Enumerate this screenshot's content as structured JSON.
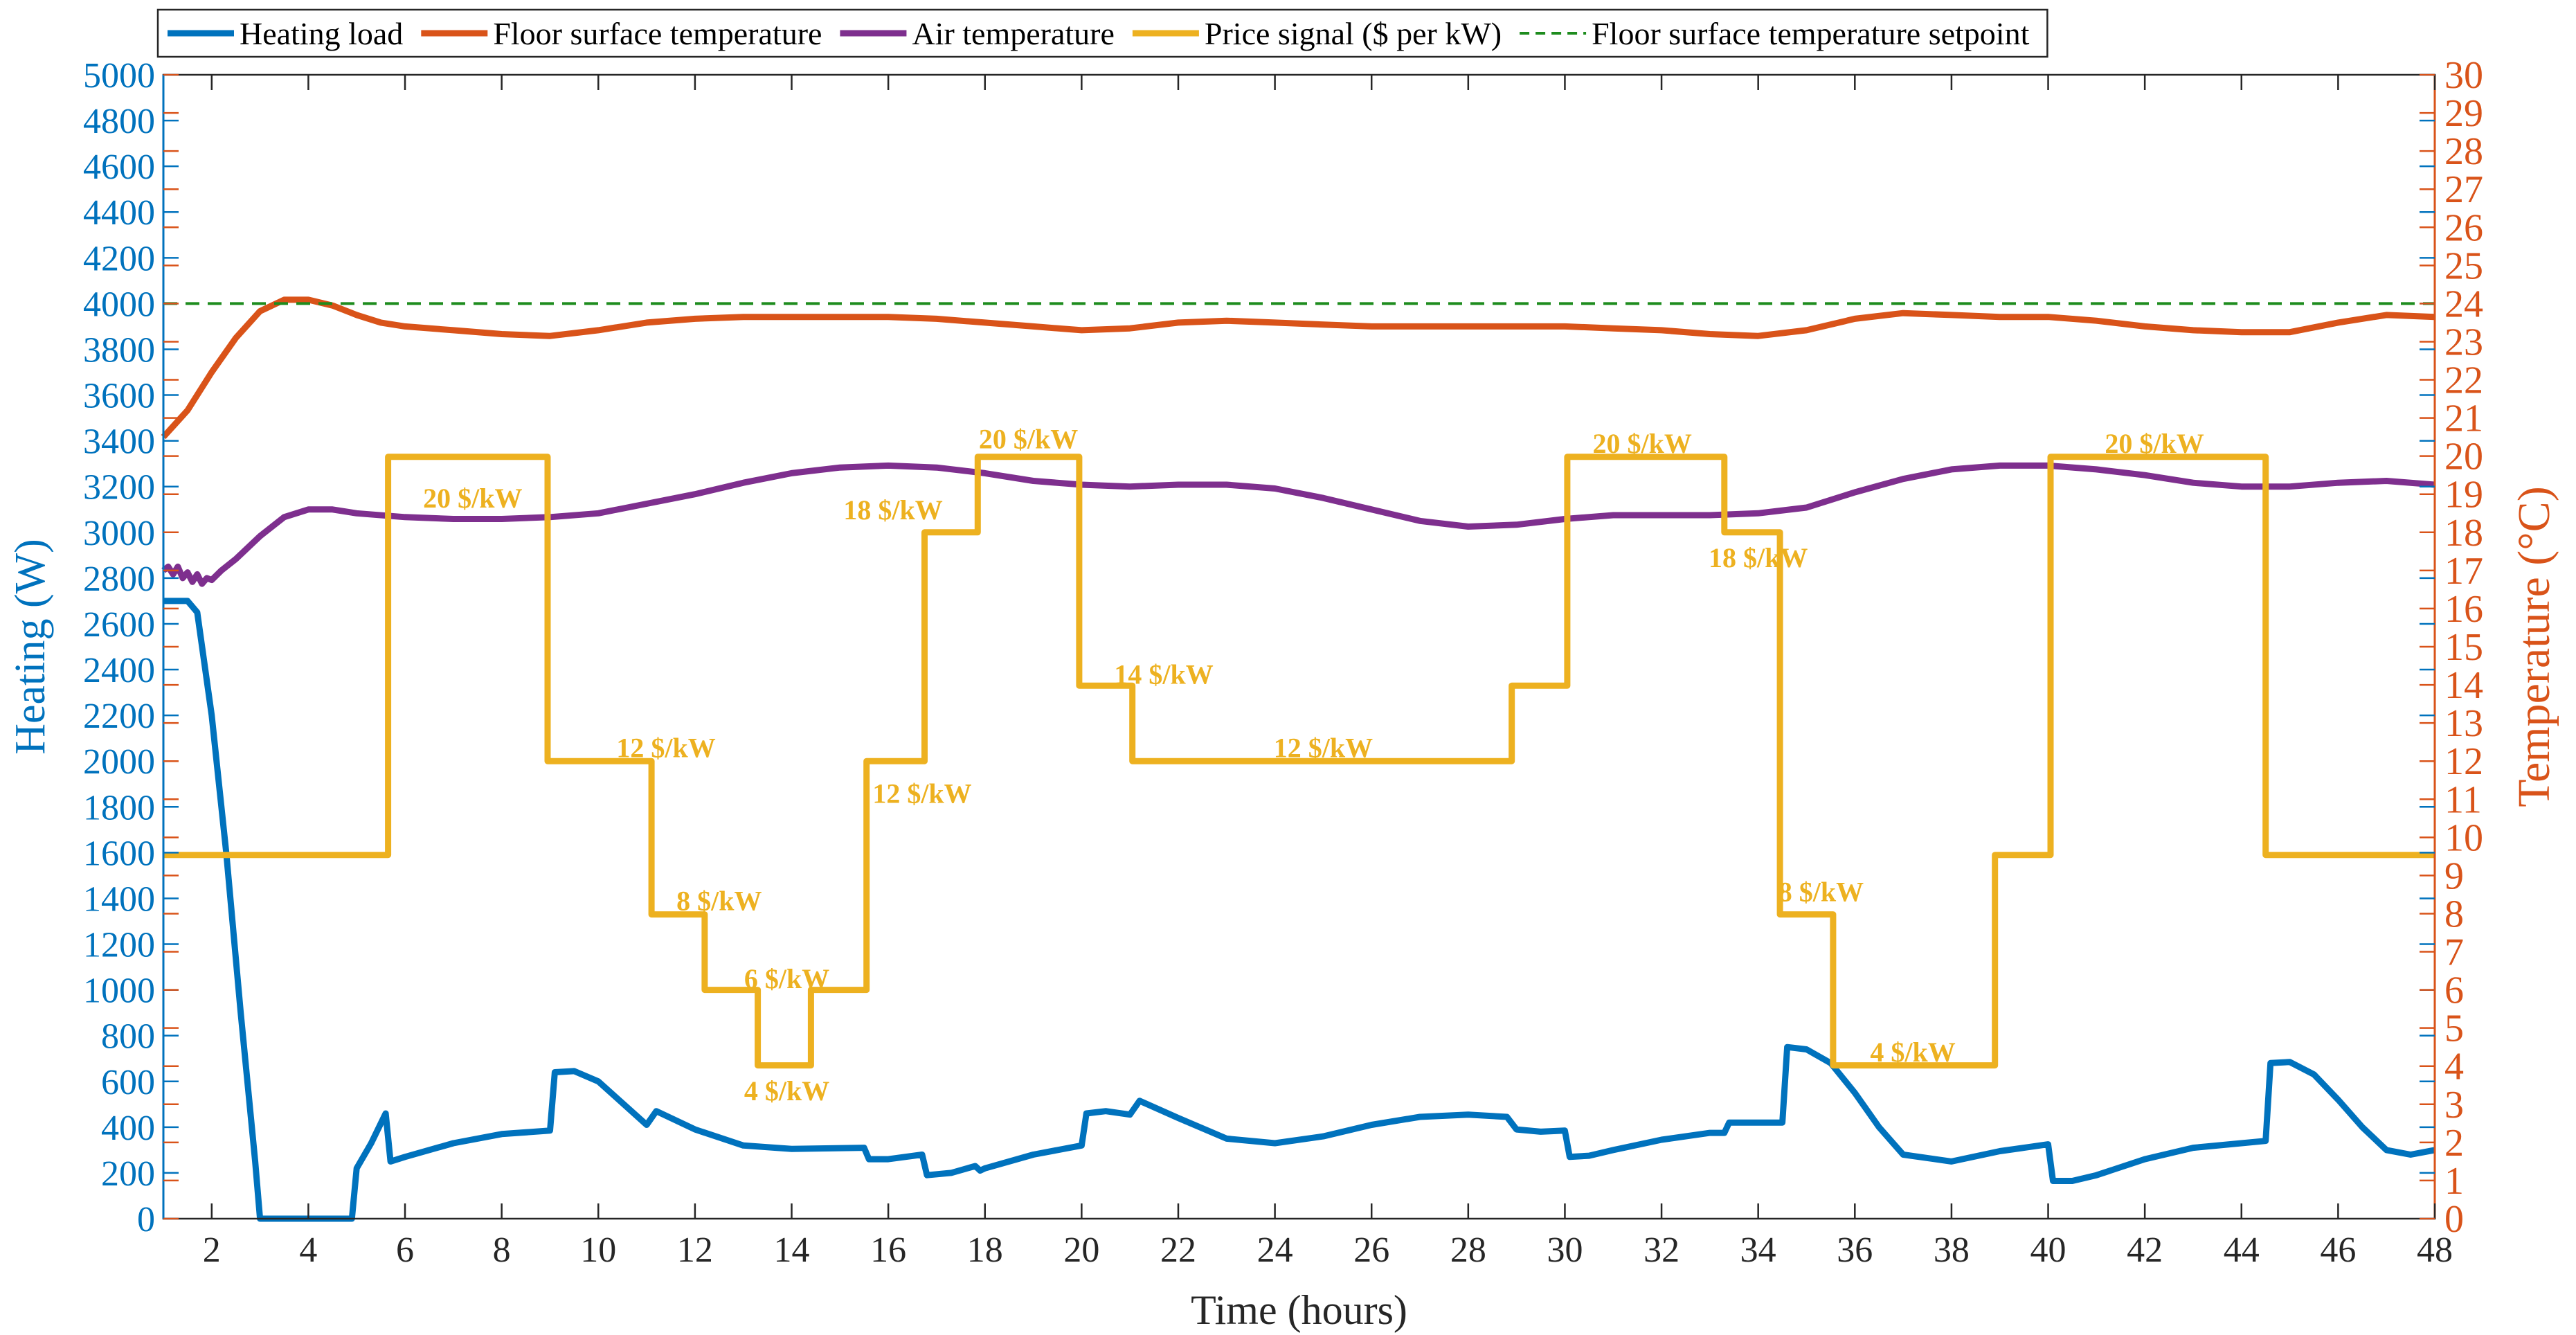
{
  "chart_data": {
    "type": "line",
    "xlabel": "Time (hours)",
    "ylabel_left": "Heating (W)",
    "ylabel_right": "Temperature (°C)",
    "xlim": [
      1,
      48
    ],
    "ylim_left": [
      0,
      5000
    ],
    "ylim_right": [
      0,
      30
    ],
    "x_ticks": [
      2,
      4,
      6,
      8,
      10,
      12,
      14,
      16,
      18,
      20,
      22,
      24,
      26,
      28,
      30,
      32,
      34,
      36,
      38,
      40,
      42,
      44,
      46,
      48
    ],
    "y_ticks_left": [
      0,
      200,
      400,
      600,
      800,
      1000,
      1200,
      1400,
      1600,
      1800,
      2000,
      2200,
      2400,
      2600,
      2800,
      3000,
      3200,
      3400,
      3600,
      3800,
      4000,
      4200,
      4400,
      4600,
      4800,
      5000
    ],
    "y_ticks_right": [
      0,
      1,
      2,
      3,
      4,
      5,
      6,
      7,
      8,
      9,
      10,
      11,
      12,
      13,
      14,
      15,
      16,
      17,
      18,
      19,
      20,
      21,
      22,
      23,
      24,
      25,
      26,
      27,
      28,
      29,
      30
    ],
    "grid": false,
    "legend_position": "top",
    "series": [
      {
        "name": "Heating load",
        "axis": "left",
        "color": "#0072BD",
        "dashed": false,
        "points": [
          [
            1,
            2700
          ],
          [
            1.5,
            2700
          ],
          [
            1.7,
            2650
          ],
          [
            2,
            2200
          ],
          [
            2.3,
            1600
          ],
          [
            2.6,
            900
          ],
          [
            2.9,
            250
          ],
          [
            3,
            0
          ],
          [
            4.9,
            0
          ],
          [
            5,
            220
          ],
          [
            5.3,
            330
          ],
          [
            5.6,
            460
          ],
          [
            5.7,
            250
          ],
          [
            6,
            270
          ],
          [
            7,
            330
          ],
          [
            8,
            370
          ],
          [
            9,
            385
          ],
          [
            9.1,
            640
          ],
          [
            9.5,
            645
          ],
          [
            10,
            600
          ],
          [
            11,
            410
          ],
          [
            11.2,
            470
          ],
          [
            12,
            390
          ],
          [
            13,
            320
          ],
          [
            14,
            305
          ],
          [
            15.5,
            310
          ],
          [
            15.6,
            260
          ],
          [
            16,
            260
          ],
          [
            16.7,
            280
          ],
          [
            16.8,
            190
          ],
          [
            17.3,
            200
          ],
          [
            17.8,
            230
          ],
          [
            17.9,
            210
          ],
          [
            18,
            220
          ],
          [
            19,
            280
          ],
          [
            20,
            320
          ],
          [
            20.1,
            460
          ],
          [
            20.5,
            470
          ],
          [
            21,
            455
          ],
          [
            21.2,
            515
          ],
          [
            22,
            440
          ],
          [
            23,
            350
          ],
          [
            24,
            330
          ],
          [
            25,
            360
          ],
          [
            26,
            410
          ],
          [
            27,
            445
          ],
          [
            28,
            455
          ],
          [
            28.8,
            445
          ],
          [
            29,
            390
          ],
          [
            29.5,
            380
          ],
          [
            30,
            385
          ],
          [
            30.1,
            270
          ],
          [
            30.5,
            275
          ],
          [
            31,
            300
          ],
          [
            32,
            345
          ],
          [
            33,
            375
          ],
          [
            33.3,
            375
          ],
          [
            33.4,
            420
          ],
          [
            34.5,
            420
          ],
          [
            34.6,
            750
          ],
          [
            35,
            740
          ],
          [
            35.5,
            680
          ],
          [
            36,
            550
          ],
          [
            36.5,
            400
          ],
          [
            37,
            280
          ],
          [
            38,
            250
          ],
          [
            39,
            295
          ],
          [
            39.5,
            310
          ],
          [
            40,
            325
          ],
          [
            40.1,
            165
          ],
          [
            40.5,
            165
          ],
          [
            41,
            190
          ],
          [
            42,
            260
          ],
          [
            43,
            310
          ],
          [
            44,
            330
          ],
          [
            44.5,
            340
          ],
          [
            44.6,
            680
          ],
          [
            45,
            685
          ],
          [
            45.5,
            630
          ],
          [
            46,
            520
          ],
          [
            46.5,
            400
          ],
          [
            47,
            300
          ],
          [
            47.5,
            280
          ],
          [
            48,
            300
          ]
        ]
      },
      {
        "name": "Floor surface temperature",
        "axis": "right",
        "color": "#D95319",
        "dashed": false,
        "points": [
          [
            1,
            20.5
          ],
          [
            1.5,
            21.2
          ],
          [
            2,
            22.2
          ],
          [
            2.5,
            23.1
          ],
          [
            3,
            23.8
          ],
          [
            3.5,
            24.1
          ],
          [
            4,
            24.1
          ],
          [
            4.5,
            23.95
          ],
          [
            5,
            23.7
          ],
          [
            5.5,
            23.5
          ],
          [
            6,
            23.4
          ],
          [
            7,
            23.3
          ],
          [
            8,
            23.2
          ],
          [
            9,
            23.15
          ],
          [
            10,
            23.3
          ],
          [
            11,
            23.5
          ],
          [
            12,
            23.6
          ],
          [
            13,
            23.65
          ],
          [
            14,
            23.65
          ],
          [
            15,
            23.65
          ],
          [
            16,
            23.65
          ],
          [
            17,
            23.6
          ],
          [
            18,
            23.5
          ],
          [
            19,
            23.4
          ],
          [
            20,
            23.3
          ],
          [
            21,
            23.35
          ],
          [
            22,
            23.5
          ],
          [
            23,
            23.55
          ],
          [
            24,
            23.5
          ],
          [
            25,
            23.45
          ],
          [
            26,
            23.4
          ],
          [
            27,
            23.4
          ],
          [
            28,
            23.4
          ],
          [
            29,
            23.4
          ],
          [
            30,
            23.4
          ],
          [
            31,
            23.35
          ],
          [
            32,
            23.3
          ],
          [
            33,
            23.2
          ],
          [
            34,
            23.15
          ],
          [
            35,
            23.3
          ],
          [
            36,
            23.6
          ],
          [
            37,
            23.75
          ],
          [
            38,
            23.7
          ],
          [
            39,
            23.65
          ],
          [
            40,
            23.65
          ],
          [
            41,
            23.55
          ],
          [
            42,
            23.4
          ],
          [
            43,
            23.3
          ],
          [
            44,
            23.25
          ],
          [
            45,
            23.25
          ],
          [
            46,
            23.5
          ],
          [
            47,
            23.7
          ],
          [
            48,
            23.65
          ]
        ]
      },
      {
        "name": "Air temperature",
        "axis": "right",
        "color": "#7E2F8E",
        "dashed": false,
        "points": [
          [
            1,
            17.0
          ],
          [
            1.1,
            17.1
          ],
          [
            1.2,
            16.9
          ],
          [
            1.3,
            17.1
          ],
          [
            1.4,
            16.8
          ],
          [
            1.5,
            16.95
          ],
          [
            1.6,
            16.7
          ],
          [
            1.7,
            16.9
          ],
          [
            1.8,
            16.65
          ],
          [
            1.9,
            16.8
          ],
          [
            2,
            16.75
          ],
          [
            2.2,
            17.0
          ],
          [
            2.5,
            17.3
          ],
          [
            3,
            17.9
          ],
          [
            3.5,
            18.4
          ],
          [
            4,
            18.6
          ],
          [
            4.5,
            18.6
          ],
          [
            5,
            18.5
          ],
          [
            6,
            18.4
          ],
          [
            7,
            18.35
          ],
          [
            8,
            18.35
          ],
          [
            9,
            18.4
          ],
          [
            10,
            18.5
          ],
          [
            11,
            18.75
          ],
          [
            12,
            19.0
          ],
          [
            13,
            19.3
          ],
          [
            14,
            19.55
          ],
          [
            15,
            19.7
          ],
          [
            16,
            19.75
          ],
          [
            17,
            19.7
          ],
          [
            18,
            19.55
          ],
          [
            19,
            19.35
          ],
          [
            20,
            19.25
          ],
          [
            21,
            19.2
          ],
          [
            22,
            19.25
          ],
          [
            23,
            19.25
          ],
          [
            24,
            19.15
          ],
          [
            25,
            18.9
          ],
          [
            26,
            18.6
          ],
          [
            27,
            18.3
          ],
          [
            28,
            18.15
          ],
          [
            29,
            18.2
          ],
          [
            30,
            18.35
          ],
          [
            31,
            18.45
          ],
          [
            32,
            18.45
          ],
          [
            33,
            18.45
          ],
          [
            34,
            18.5
          ],
          [
            35,
            18.65
          ],
          [
            36,
            19.05
          ],
          [
            37,
            19.4
          ],
          [
            38,
            19.65
          ],
          [
            39,
            19.75
          ],
          [
            40,
            19.75
          ],
          [
            41,
            19.65
          ],
          [
            42,
            19.5
          ],
          [
            43,
            19.3
          ],
          [
            44,
            19.2
          ],
          [
            45,
            19.2
          ],
          [
            46,
            19.3
          ],
          [
            47,
            19.35
          ],
          [
            48,
            19.25
          ]
        ]
      },
      {
        "name": "Price signal ($ per kW)",
        "axis": "left",
        "color": "#EDB120",
        "dashed": false,
        "points": [
          [
            1,
            1590
          ],
          [
            5.65,
            1590
          ],
          [
            5.65,
            3330
          ],
          [
            8.95,
            3330
          ],
          [
            8.95,
            2000
          ],
          [
            11.1,
            2000
          ],
          [
            11.1,
            1330
          ],
          [
            12.2,
            1330
          ],
          [
            12.2,
            1000
          ],
          [
            13.3,
            1000
          ],
          [
            13.3,
            670
          ],
          [
            14.4,
            670
          ],
          [
            14.4,
            1000
          ],
          [
            15.55,
            1000
          ],
          [
            15.55,
            2000
          ],
          [
            16.75,
            2000
          ],
          [
            16.75,
            3000
          ],
          [
            17.85,
            3000
          ],
          [
            17.85,
            3330
          ],
          [
            19.95,
            3330
          ],
          [
            19.95,
            2330
          ],
          [
            21.05,
            2330
          ],
          [
            21.05,
            2000
          ],
          [
            28.9,
            2000
          ],
          [
            28.9,
            2330
          ],
          [
            30.05,
            2330
          ],
          [
            30.05,
            3330
          ],
          [
            33.3,
            3330
          ],
          [
            33.3,
            3000
          ],
          [
            34.45,
            3000
          ],
          [
            34.45,
            1330
          ],
          [
            35.55,
            1330
          ],
          [
            35.55,
            670
          ],
          [
            38.9,
            670
          ],
          [
            38.9,
            1590
          ],
          [
            40.05,
            1590
          ],
          [
            40.05,
            3330
          ],
          [
            44.5,
            3330
          ],
          [
            44.5,
            1590
          ],
          [
            48,
            1590
          ]
        ]
      },
      {
        "name": "Floor surface temperature setpoint",
        "axis": "right",
        "color": "#1E8C1E",
        "dashed": true,
        "points": [
          [
            1,
            24
          ],
          [
            48,
            24
          ]
        ]
      }
    ],
    "annotations": [
      {
        "text": "20 $/kW",
        "x": 7.4,
        "y": 3150
      },
      {
        "text": "12 $/kW",
        "x": 11.4,
        "y": 2060
      },
      {
        "text": "8 $/kW",
        "x": 12.5,
        "y": 1390
      },
      {
        "text": "6 $/kW",
        "x": 13.9,
        "y": 1050
      },
      {
        "text": "4 $/kW",
        "x": 13.9,
        "y": 560
      },
      {
        "text": "12 $/kW",
        "x": 16.7,
        "y": 1860
      },
      {
        "text": "18 $/kW",
        "x": 16.1,
        "y": 3100
      },
      {
        "text": "20 $/kW",
        "x": 18.9,
        "y": 3410
      },
      {
        "text": "14 $/kW",
        "x": 21.7,
        "y": 2380
      },
      {
        "text": "12 $/kW",
        "x": 25.0,
        "y": 2060
      },
      {
        "text": "20 $/kW",
        "x": 31.6,
        "y": 3390
      },
      {
        "text": "18 $/kW",
        "x": 34.0,
        "y": 2890
      },
      {
        "text": "8 $/kW",
        "x": 35.3,
        "y": 1430
      },
      {
        "text": "4 $/kW",
        "x": 37.2,
        "y": 730
      },
      {
        "text": "20 $/kW",
        "x": 42.2,
        "y": 3390
      }
    ]
  }
}
